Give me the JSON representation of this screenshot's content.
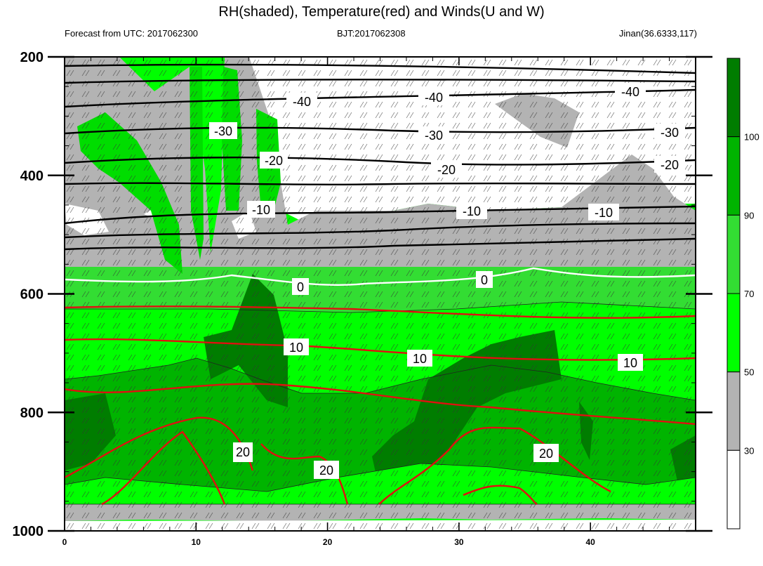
{
  "chart_data": {
    "type": "contour",
    "title": "RH(shaded), Temperature(red) and Winds(U and W)",
    "subtitle_left": "Forecast from UTC: 2017062300",
    "subtitle_center": "BJT:2017062308",
    "subtitle_right": "Jinan(36.6333,117)",
    "x_ticks": [
      0,
      10,
      20,
      30,
      40
    ],
    "xlim": [
      0,
      48
    ],
    "y_ticks": [
      200,
      400,
      600,
      800,
      1000
    ],
    "ylim": [
      200,
      1000
    ],
    "colorbar": {
      "levels": [
        30,
        50,
        70,
        90,
        100
      ],
      "colors": [
        "#ffffff",
        "#b3b3b3",
        "#00ff00",
        "#33dd33",
        "#00b400",
        "#007d00"
      ]
    },
    "temperature_labels": [
      "-40",
      "-40",
      "-40",
      "-30",
      "-30",
      "-30",
      "-20",
      "-20",
      "-20",
      "-10",
      "-10",
      "-10",
      "0",
      "0",
      "10",
      "10",
      "10",
      "20",
      "20",
      "20"
    ],
    "colors": {
      "cold_isotherm": "#000000",
      "zero_isotherm": "#ffffff",
      "warm_isotherm": "#e01010"
    }
  }
}
